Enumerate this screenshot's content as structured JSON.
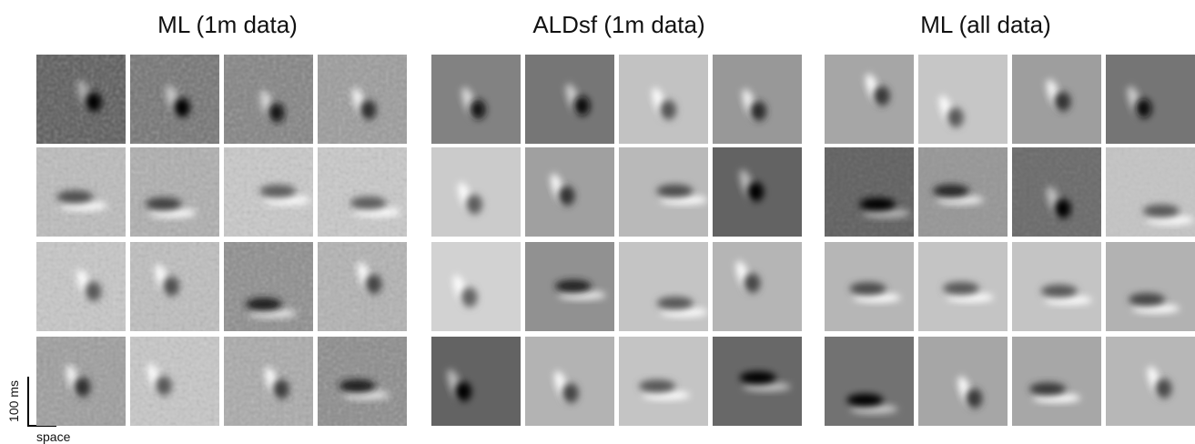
{
  "panels": [
    {
      "title": "ML (1m data)"
    },
    {
      "title": "ALDsf (1m data)"
    },
    {
      "title": "ML (all data)"
    }
  ],
  "scale_bar": {
    "time_label": "100 ms",
    "space_label": "space"
  }
}
